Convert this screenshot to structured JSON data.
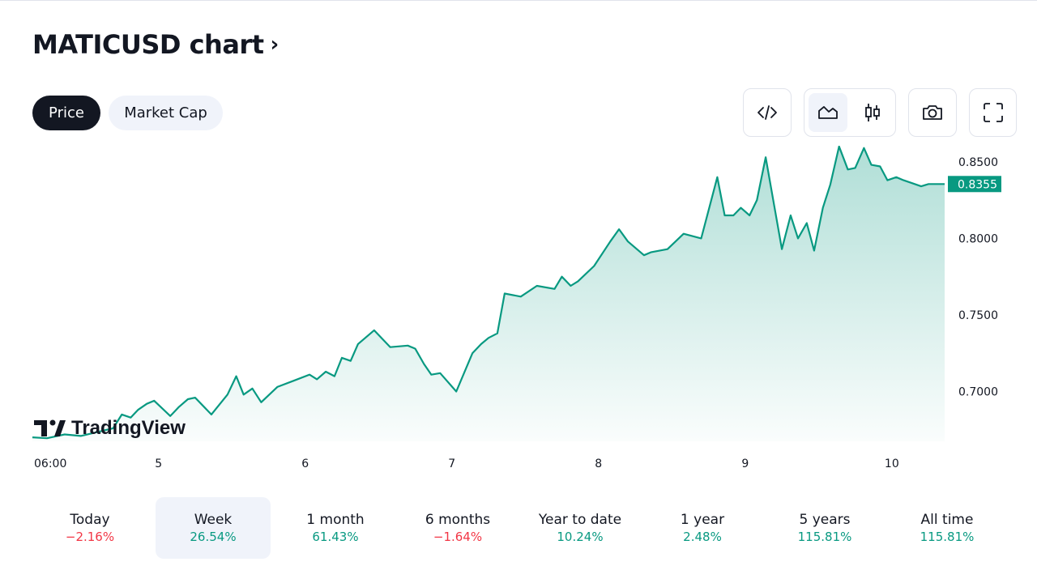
{
  "header": {
    "title": "MATICUSD chart",
    "chevron": "›"
  },
  "tabs": [
    {
      "label": "Price",
      "active": true
    },
    {
      "label": "Market Cap",
      "active": false
    }
  ],
  "toolbar": {
    "embed_icon": "code-embed-icon",
    "area_icon": "area-chart-icon",
    "candles_icon": "candles-icon",
    "camera_icon": "camera-icon",
    "fullscreen_icon": "fullscreen-icon",
    "selected_style": "area"
  },
  "watermark": {
    "text": "TradingView"
  },
  "chart_data": {
    "type": "area",
    "title": "",
    "line_color": "#089981",
    "fill_color": "#089981",
    "grid": false,
    "ylim": [
      0.6675,
      0.8605
    ],
    "y_ticks": [
      "0.8500",
      "0.8000",
      "0.7500",
      "0.7000"
    ],
    "y_tick_values": [
      0.85,
      0.8,
      0.75,
      0.7
    ],
    "x_ticks": [
      "06:00",
      "5",
      "6",
      "7",
      "8",
      "9",
      "10"
    ],
    "x_tick_values": [
      0,
      0.86,
      1.86,
      2.86,
      3.86,
      4.86,
      5.86
    ],
    "last_value": "0.8355",
    "last_value_num": 0.8355,
    "series": [
      {
        "x": [
          0,
          0.1,
          0.22,
          0.33,
          0.44,
          0.55,
          0.61,
          0.67,
          0.72,
          0.78,
          0.83,
          0.94,
          1.0,
          1.06,
          1.11,
          1.22,
          1.33,
          1.39,
          1.44,
          1.5,
          1.56,
          1.67,
          1.78,
          1.89,
          1.94,
          2.0,
          2.06,
          2.11,
          2.17,
          2.22,
          2.33,
          2.44,
          2.56,
          2.61,
          2.67,
          2.72,
          2.78,
          2.89,
          3.0,
          3.06,
          3.11,
          3.17,
          3.22,
          3.33,
          3.44,
          3.56,
          3.61,
          3.67,
          3.72,
          3.83,
          3.94,
          4.0,
          4.06,
          4.17,
          4.22,
          4.33,
          4.44,
          4.56,
          4.67,
          4.72,
          4.78,
          4.83,
          4.89,
          4.94,
          5.0,
          5.11,
          5.17,
          5.22,
          5.28,
          5.33,
          5.39,
          5.44,
          5.5,
          5.56,
          5.61,
          5.67,
          5.72,
          5.78,
          5.83,
          5.89,
          5.94,
          6.0,
          6.06,
          6.11,
          6.17,
          6.22
        ],
        "y": [
          0.6701,
          0.6695,
          0.672,
          0.671,
          0.6735,
          0.676,
          0.685,
          0.683,
          0.688,
          0.692,
          0.694,
          0.684,
          0.69,
          0.695,
          0.696,
          0.685,
          0.698,
          0.71,
          0.698,
          0.702,
          0.693,
          0.703,
          0.707,
          0.711,
          0.708,
          0.713,
          0.71,
          0.722,
          0.72,
          0.731,
          0.74,
          0.729,
          0.73,
          0.728,
          0.718,
          0.711,
          0.712,
          0.7,
          0.725,
          0.731,
          0.735,
          0.738,
          0.764,
          0.762,
          0.769,
          0.767,
          0.775,
          0.769,
          0.772,
          0.782,
          0.798,
          0.806,
          0.798,
          0.789,
          0.791,
          0.793,
          0.803,
          0.8,
          0.84,
          0.815,
          0.815,
          0.82,
          0.815,
          0.825,
          0.853,
          0.793,
          0.815,
          0.8,
          0.81,
          0.792,
          0.82,
          0.835,
          0.86,
          0.845,
          0.846,
          0.859,
          0.848,
          0.847,
          0.838,
          0.84,
          0.838,
          0.836,
          0.834,
          0.8355,
          0.8355,
          0.8355
        ]
      }
    ]
  },
  "periods": [
    {
      "label": "Today",
      "value": "−2.16%",
      "trend": "down",
      "selected": false
    },
    {
      "label": "Week",
      "value": "26.54%",
      "trend": "up",
      "selected": true
    },
    {
      "label": "1 month",
      "value": "61.43%",
      "trend": "up",
      "selected": false
    },
    {
      "label": "6 months",
      "value": "−1.64%",
      "trend": "down",
      "selected": false
    },
    {
      "label": "Year to date",
      "value": "10.24%",
      "trend": "up",
      "selected": false
    },
    {
      "label": "1 year",
      "value": "2.48%",
      "trend": "up",
      "selected": false
    },
    {
      "label": "5 years",
      "value": "115.81%",
      "trend": "up",
      "selected": false
    },
    {
      "label": "All time",
      "value": "115.81%",
      "trend": "up",
      "selected": false
    }
  ]
}
